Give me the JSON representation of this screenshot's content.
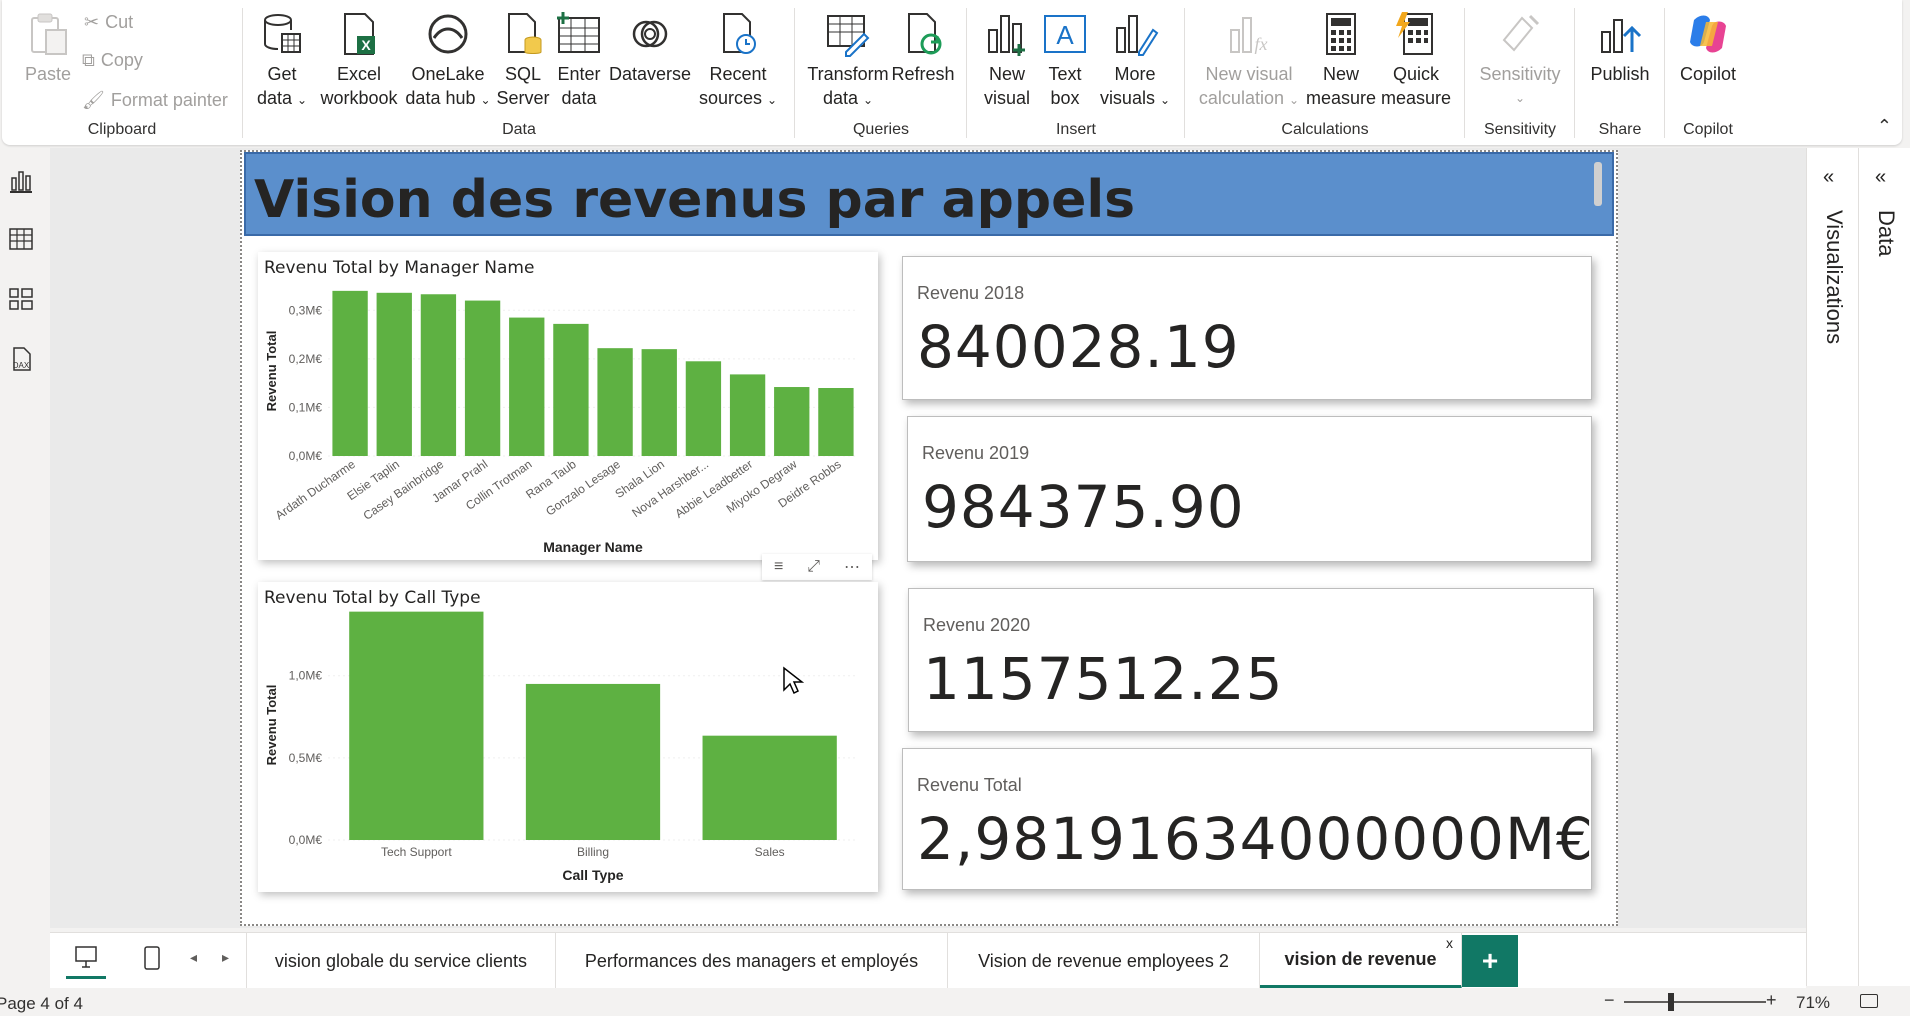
{
  "ribbon": {
    "clipboard": {
      "paste": "Paste",
      "cut": "Cut",
      "copy": "Copy",
      "format_painter": "Format painter",
      "group": "Clipboard"
    },
    "data": {
      "get_data_1": "Get",
      "get_data_2": "data",
      "excel_1": "Excel",
      "excel_2": "workbook",
      "onelake_1": "OneLake",
      "onelake_2": "data hub",
      "sql_1": "SQL",
      "sql_2": "Server",
      "enter_1": "Enter",
      "enter_2": "data",
      "dataverse": "Dataverse",
      "recent_1": "Recent",
      "recent_2": "sources",
      "group": "Data"
    },
    "queries": {
      "transform_1": "Transform",
      "transform_2": "data",
      "refresh": "Refresh",
      "group": "Queries"
    },
    "insert": {
      "new_visual_1": "New",
      "new_visual_2": "visual",
      "text_box_1": "Text",
      "text_box_2": "box",
      "more_1": "More",
      "more_2": "visuals",
      "group": "Insert"
    },
    "calculations": {
      "nvc_1": "New visual",
      "nvc_2": "calculation",
      "nm_1": "New",
      "nm_2": "measure",
      "qm_1": "Quick",
      "qm_2": "measure",
      "group": "Calculations"
    },
    "sensitivity": {
      "label": "Sensitivity",
      "group": "Sensitivity"
    },
    "share": {
      "publish": "Publish",
      "group": "Share"
    },
    "copilot": {
      "label": "Copilot",
      "group": "Copilot"
    }
  },
  "report": {
    "title": "Vision des revenus par appels"
  },
  "chart1": {
    "title": "Revenu Total by Manager Name"
  },
  "chart2": {
    "title": "Revenu Total by Call Type"
  },
  "chart_data": [
    {
      "type": "bar",
      "title": "Revenu Total by Manager Name",
      "xlabel": "Manager Name",
      "ylabel": "Revenu Total",
      "categories": [
        "Ardath Ducharme",
        "Elsie Taplin",
        "Casey Bainbridge",
        "Jamar Prahl",
        "Collin Trotman",
        "Rana Taub",
        "Gonzalo Lesage",
        "Shala Lion",
        "Nova Harshber...",
        "Abbie Leadbetter",
        "Miyoko Degraw",
        "Deidre Robbs"
      ],
      "values": [
        0.34,
        0.336,
        0.333,
        0.32,
        0.285,
        0.272,
        0.222,
        0.22,
        0.195,
        0.168,
        0.142,
        0.14
      ],
      "yticks": [
        "0,0M€",
        "0,1M€",
        "0,2M€",
        "0,3M€"
      ],
      "ylim": [
        0,
        0.35
      ],
      "color": "#5eb142"
    },
    {
      "type": "bar",
      "title": "Revenu Total by Call Type",
      "xlabel": "Call Type",
      "ylabel": "Revenu Total",
      "categories": [
        "Tech Support",
        "Billing",
        "Sales"
      ],
      "values": [
        1.39,
        0.95,
        0.635
      ],
      "yticks": [
        "0,0M€",
        "0,5M€",
        "1,0M€"
      ],
      "ylim": [
        0,
        1.4
      ],
      "color": "#5eb142"
    }
  ],
  "cards": [
    {
      "label": "Revenu 2018",
      "value": "840028.19"
    },
    {
      "label": "Revenu 2019",
      "value": "984375.90"
    },
    {
      "label": "Revenu 2020",
      "value": "1157512.25"
    },
    {
      "label": "Revenu Total",
      "value": "2,98191634000000M€"
    }
  ],
  "panes": {
    "visualizations": "Visualizations",
    "data": "Data"
  },
  "tabs": [
    "vision globale du service clients",
    "Performances des managers et employés",
    "Vision de revenue employees 2",
    "vision de revenue"
  ],
  "tab_close": "x",
  "tab_add": "+",
  "status": {
    "page": "Page 4 of 4",
    "zoom": "71%"
  }
}
